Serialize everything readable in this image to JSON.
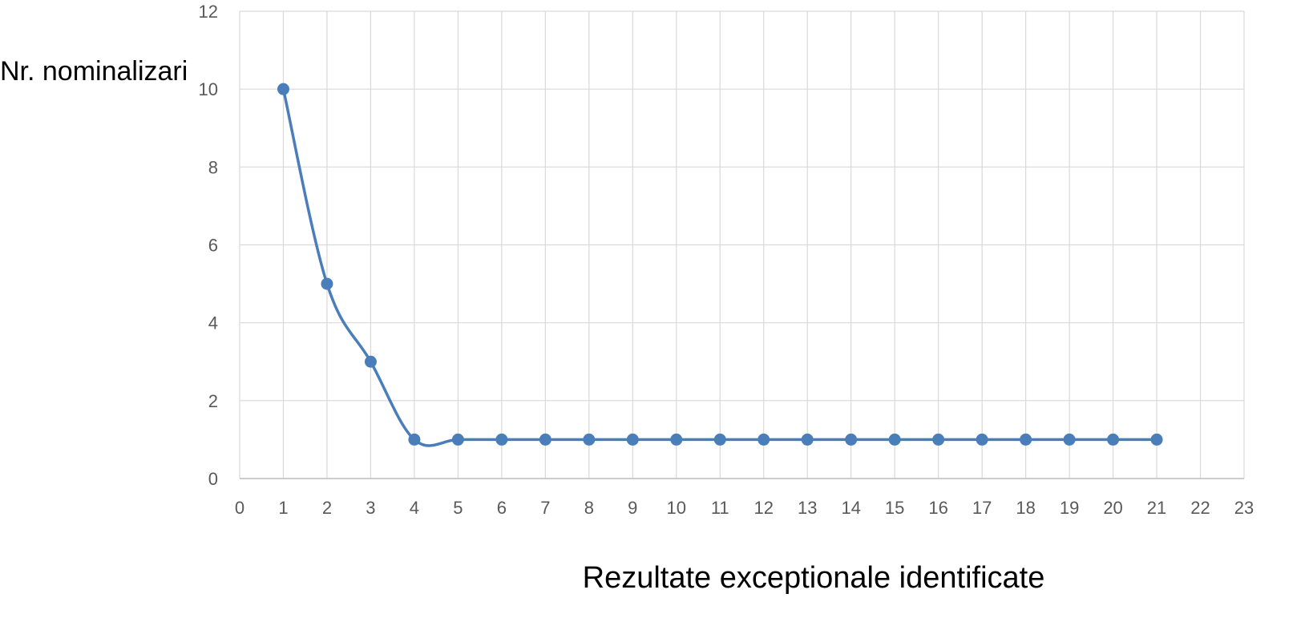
{
  "chart_data": {
    "type": "line",
    "xlabel": "Rezultate exceptionale identificate",
    "ylabel": "Nr. nominalizari",
    "xlim": [
      0,
      23
    ],
    "ylim": [
      0,
      12
    ],
    "x_ticks": [
      "0",
      "1",
      "2",
      "3",
      "4",
      "5",
      "6",
      "7",
      "8",
      "9",
      "10",
      "11",
      "12",
      "13",
      "14",
      "15",
      "16",
      "17",
      "18",
      "19",
      "20",
      "21",
      "22",
      "23"
    ],
    "y_ticks": [
      "0",
      "2",
      "4",
      "6",
      "8",
      "10",
      "12"
    ],
    "grid": true,
    "smooth": true,
    "series": [
      {
        "x": [
          1,
          2,
          3,
          4,
          5,
          6,
          7,
          8,
          9,
          10,
          11,
          12,
          13,
          14,
          15,
          16,
          17,
          18,
          19,
          20,
          21
        ],
        "y": [
          10,
          5,
          3,
          1,
          1,
          1,
          1,
          1,
          1,
          1,
          1,
          1,
          1,
          1,
          1,
          1,
          1,
          1,
          1,
          1,
          1
        ],
        "color": "#4a7ebb"
      }
    ],
    "grid_color": "#d9d9d9",
    "axis_color": "#bfbfbf",
    "tick_color": "#595959"
  }
}
